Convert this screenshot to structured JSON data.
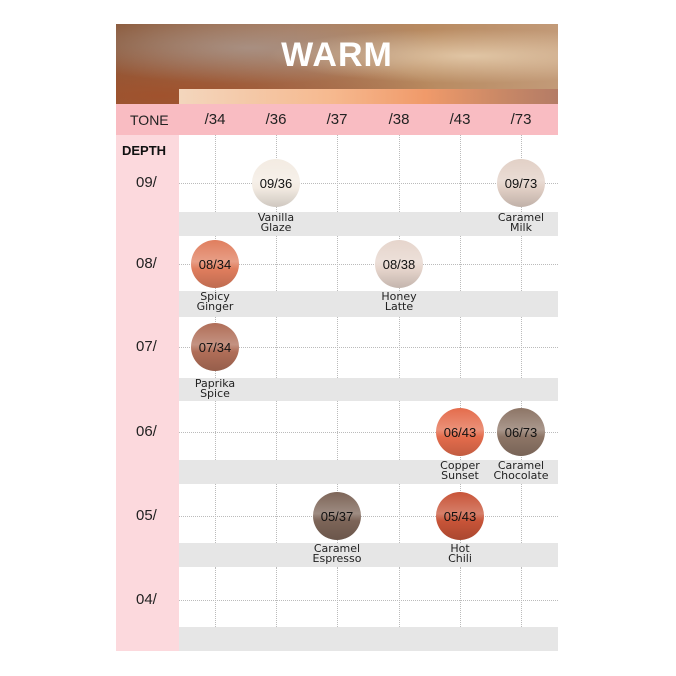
{
  "title": "WARM",
  "tone_label": "TONE",
  "depth_label": "DEPTH",
  "tones": [
    "/34",
    "/36",
    "/37",
    "/38",
    "/43",
    "/73"
  ],
  "rows": [
    {
      "depth": "09/",
      "shades": [
        {
          "tone": 1,
          "code": "09/36",
          "name": [
            "Vanilla",
            "Glaze"
          ],
          "color": "#f3ebe2"
        },
        {
          "tone": 5,
          "code": "09/73",
          "name": [
            "Caramel",
            "Milk"
          ],
          "color": "#e2d0c6"
        }
      ]
    },
    {
      "depth": "08/",
      "shades": [
        {
          "tone": 0,
          "code": "08/34",
          "name": [
            "Spicy",
            "Ginger"
          ],
          "color": "#e07e5e"
        },
        {
          "tone": 3,
          "code": "08/38",
          "name": [
            "Honey",
            "Latte"
          ],
          "color": "#e6d5cc"
        }
      ]
    },
    {
      "depth": "07/",
      "shades": [
        {
          "tone": 0,
          "code": "07/34",
          "name": [
            "Paprika",
            "Spice"
          ],
          "color": "#b06e58"
        }
      ]
    },
    {
      "depth": "06/",
      "shades": [
        {
          "tone": 4,
          "code": "06/43",
          "name": [
            "Copper",
            "Sunset"
          ],
          "color": "#e46c4c"
        },
        {
          "tone": 5,
          "code": "06/73",
          "name": [
            "Caramel",
            "Chocolate"
          ],
          "color": "#8d7566"
        }
      ]
    },
    {
      "depth": "05/",
      "shades": [
        {
          "tone": 2,
          "code": "05/37",
          "name": [
            "Caramel",
            "Espresso"
          ],
          "color": "#7d6558"
        },
        {
          "tone": 4,
          "code": "05/43",
          "name": [
            "Hot",
            "Chili"
          ],
          "color": "#c85438"
        }
      ]
    },
    {
      "depth": "04/",
      "shades": []
    }
  ]
}
